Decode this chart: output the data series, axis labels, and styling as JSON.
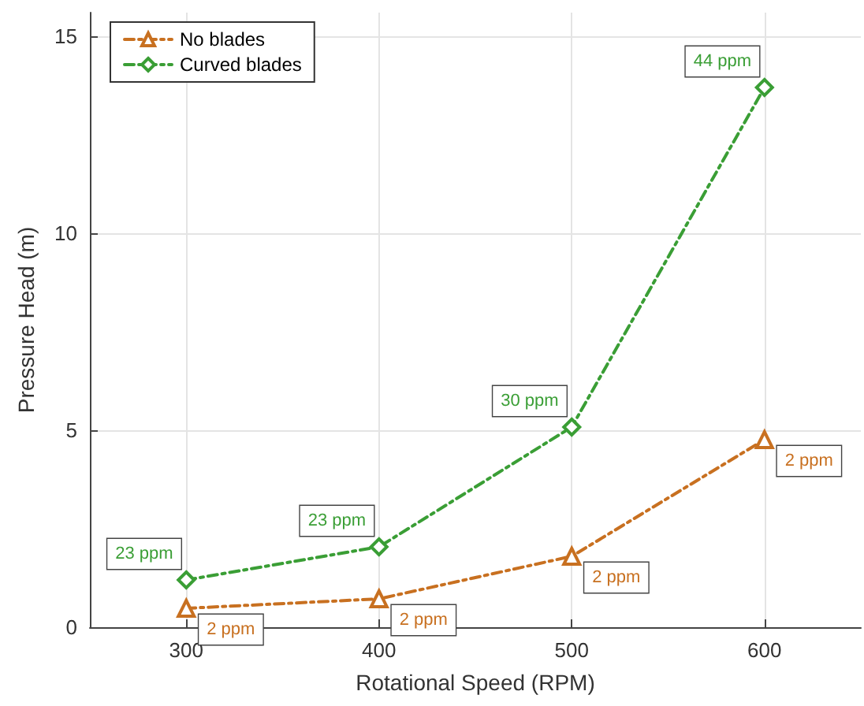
{
  "chart_data": {
    "type": "line",
    "xlabel": "Rotational Speed (RPM)",
    "ylabel": "Pressure Head (m)",
    "x": [
      300,
      400,
      500,
      600
    ],
    "series": [
      {
        "name": "No blades",
        "color": "#c87020",
        "marker": "triangle",
        "line_style": "dashed",
        "values": [
          0.48,
          0.72,
          1.8,
          4.76
        ]
      },
      {
        "name": "Curved blades",
        "color": "#3a9e35",
        "marker": "diamond",
        "line_style": "dashed",
        "values": [
          1.2,
          2.04,
          5.08,
          13.7
        ]
      }
    ],
    "annotations": [
      {
        "text": "2 ppm",
        "x": 300,
        "y": 0.48
      },
      {
        "text": "2 ppm",
        "x": 400,
        "y": 0.72
      },
      {
        "text": "2 ppm",
        "x": 500,
        "y": 1.8
      },
      {
        "text": "2 ppm",
        "x": 600,
        "y": 4.76
      },
      {
        "text": "23 ppm",
        "x": 300,
        "y": 1.2
      },
      {
        "text": "23 ppm",
        "x": 400,
        "y": 2.04
      },
      {
        "text": "30 ppm",
        "x": 500,
        "y": 5.08
      },
      {
        "text": "44 ppm",
        "x": 600,
        "y": 13.7
      }
    ],
    "xlim": [
      250,
      650
    ],
    "xticks": [
      300,
      400,
      500,
      600
    ],
    "ylim": [
      0,
      15.6
    ],
    "yticks": [
      0,
      5,
      10,
      15
    ],
    "grid": true,
    "legend": "top left"
  }
}
